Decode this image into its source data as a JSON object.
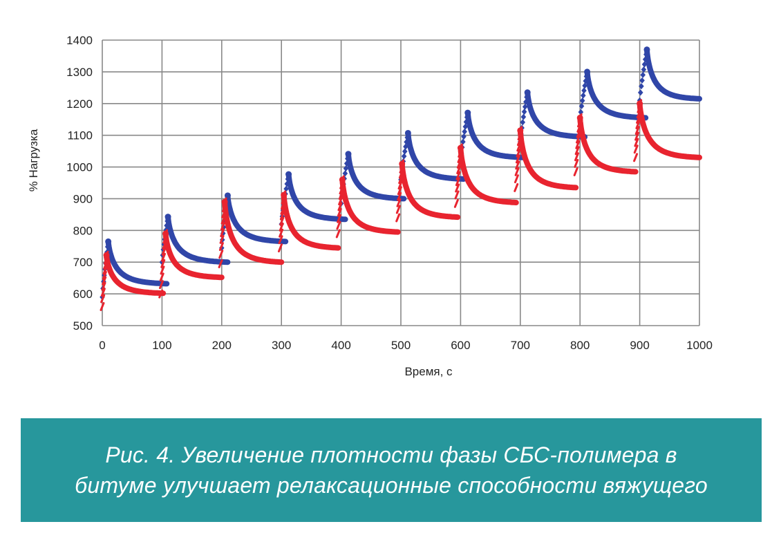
{
  "chart_data": {
    "type": "scatter",
    "title": "",
    "xlabel": "Время, с",
    "ylabel": "% Нагрузка",
    "xlim": [
      0,
      1000
    ],
    "ylim": [
      500,
      1400
    ],
    "x_ticks": [
      0,
      100,
      200,
      300,
      400,
      500,
      600,
      700,
      800,
      900,
      1000
    ],
    "y_ticks": [
      500,
      600,
      700,
      800,
      900,
      1000,
      1100,
      1200,
      1300,
      1400
    ],
    "grid": true,
    "legend": "none",
    "description_of_series": "Each series consists of 10 loading cycles: rapid rise over ~10 s (start→peak), then relaxation decay to an end value",
    "series": [
      {
        "color": "#3046a8",
        "marker": "diamond",
        "cycles": [
          {
            "x_start": 0,
            "x_peak": 10,
            "x_end": 108,
            "y_start": 590,
            "y_peak": 765,
            "y_end": 632
          },
          {
            "x_start": 100,
            "x_peak": 110,
            "x_end": 210,
            "y_start": 700,
            "y_peak": 843,
            "y_end": 700
          },
          {
            "x_start": 200,
            "x_peak": 210,
            "x_end": 307,
            "y_start": 745,
            "y_peak": 910,
            "y_end": 765
          },
          {
            "x_start": 300,
            "x_peak": 312,
            "x_end": 407,
            "y_start": 820,
            "y_peak": 977,
            "y_end": 835
          },
          {
            "x_start": 400,
            "x_peak": 412,
            "x_end": 505,
            "y_start": 885,
            "y_peak": 1041,
            "y_end": 900
          },
          {
            "x_start": 500,
            "x_peak": 512,
            "x_end": 605,
            "y_start": 960,
            "y_peak": 1107,
            "y_end": 962
          },
          {
            "x_start": 600,
            "x_peak": 612,
            "x_end": 705,
            "y_start": 1020,
            "y_peak": 1171,
            "y_end": 1030
          },
          {
            "x_start": 700,
            "x_peak": 712,
            "x_end": 808,
            "y_start": 1080,
            "y_peak": 1235,
            "y_end": 1095
          },
          {
            "x_start": 800,
            "x_peak": 812,
            "x_end": 910,
            "y_start": 1150,
            "y_peak": 1300,
            "y_end": 1155
          },
          {
            "x_start": 900,
            "x_peak": 912,
            "x_end": 1000,
            "y_start": 1210,
            "y_peak": 1370,
            "y_end": 1215
          }
        ]
      },
      {
        "color": "#e8242f",
        "marker": "dash",
        "cycles": [
          {
            "x_start": 0,
            "x_peak": 7,
            "x_end": 102,
            "y_start": 560,
            "y_peak": 722,
            "y_end": 602
          },
          {
            "x_start": 98,
            "x_peak": 106,
            "x_end": 200,
            "y_start": 600,
            "y_peak": 790,
            "y_end": 652
          },
          {
            "x_start": 198,
            "x_peak": 205,
            "x_end": 300,
            "y_start": 695,
            "y_peak": 890,
            "y_end": 700
          },
          {
            "x_start": 298,
            "x_peak": 304,
            "x_end": 395,
            "y_start": 745,
            "y_peak": 912,
            "y_end": 745
          },
          {
            "x_start": 395,
            "x_peak": 402,
            "x_end": 495,
            "y_start": 790,
            "y_peak": 960,
            "y_end": 795
          },
          {
            "x_start": 495,
            "x_peak": 502,
            "x_end": 595,
            "y_start": 840,
            "y_peak": 1010,
            "y_end": 842
          },
          {
            "x_start": 593,
            "x_peak": 600,
            "x_end": 693,
            "y_start": 885,
            "y_peak": 1060,
            "y_end": 888
          },
          {
            "x_start": 693,
            "x_peak": 700,
            "x_end": 793,
            "y_start": 935,
            "y_peak": 1115,
            "y_end": 935
          },
          {
            "x_start": 793,
            "x_peak": 800,
            "x_end": 893,
            "y_start": 985,
            "y_peak": 1155,
            "y_end": 985
          },
          {
            "x_start": 893,
            "x_peak": 900,
            "x_end": 1000,
            "y_start": 1030,
            "y_peak": 1200,
            "y_end": 1030
          }
        ]
      }
    ]
  },
  "caption": {
    "line1": "Рис. 4. Увеличение плотности фазы СБС-полимера в",
    "line2": "битуме улучшает релаксационные способности вяжущего"
  },
  "colors": {
    "caption_bg": "#27979c",
    "caption_text": "#ffffff",
    "grid": "#888888",
    "axis": "#888888"
  }
}
